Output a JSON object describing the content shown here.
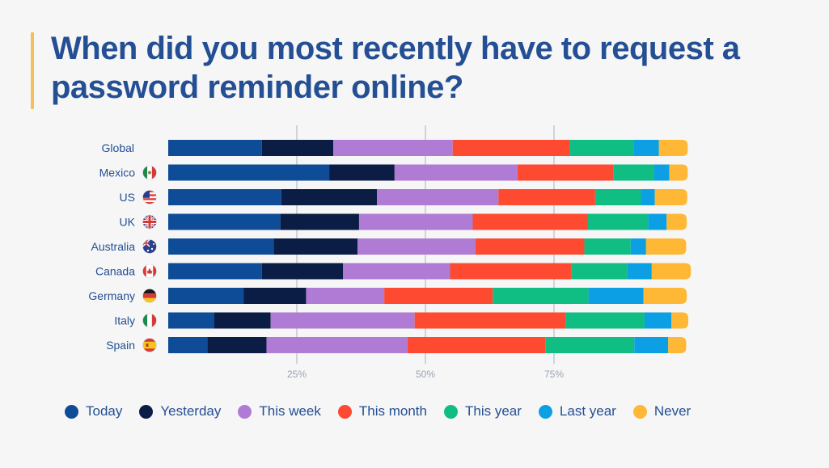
{
  "header": {
    "title": "When did you most recently have to request a password reminder online?"
  },
  "colors": {
    "title": "#244f94",
    "accent": "#f5bf5a",
    "background": "#f6f6f6",
    "grid": "#cfd4dc"
  },
  "chart_data": {
    "type": "bar",
    "orientation": "horizontal",
    "stacked": true,
    "title": "When did you most recently have to request a password reminder online?",
    "categories": [
      "Global",
      "Mexico",
      "US",
      "UK",
      "Australia",
      "Canada",
      "Germany",
      "Italy",
      "Spain"
    ],
    "flags": [
      "",
      "mexico-flag-icon",
      "us-flag-icon",
      "uk-flag-icon",
      "australia-flag-icon",
      "canada-flag-icon",
      "germany-flag-icon",
      "italy-flag-icon",
      "spain-flag-icon"
    ],
    "xlim": [
      0,
      100
    ],
    "xticks": [
      25,
      50,
      75
    ],
    "xtick_labels": [
      "25%",
      "50%",
      "75%"
    ],
    "grid": true,
    "legend_position": "bottom",
    "series": [
      {
        "name": "Today",
        "color": "#0f4c97",
        "values": [
          18.2,
          31.3,
          22.0,
          21.8,
          20.5,
          18.2,
          14.7,
          8.9,
          7.6
        ]
      },
      {
        "name": "Yesterday",
        "color": "#0b1d45",
        "values": [
          13.9,
          12.7,
          18.6,
          15.3,
          16.3,
          15.8,
          12.1,
          11.0,
          11.5
        ]
      },
      {
        "name": "This week",
        "color": "#af7bd4",
        "values": [
          23.2,
          23.9,
          23.6,
          22.1,
          22.9,
          20.8,
          15.2,
          28.0,
          27.4
        ]
      },
      {
        "name": "This month",
        "color": "#fd4a30",
        "values": [
          22.7,
          18.6,
          18.8,
          22.4,
          21.2,
          23.6,
          21.1,
          29.4,
          26.8
        ]
      },
      {
        "name": "This year",
        "color": "#10bd82",
        "values": [
          12.5,
          8.0,
          8.9,
          11.7,
          9.0,
          10.8,
          18.6,
          15.3,
          17.3
        ]
      },
      {
        "name": "Last year",
        "color": "#0d9fe4",
        "values": [
          4.9,
          2.9,
          2.7,
          3.6,
          3.0,
          4.8,
          10.7,
          5.2,
          6.6
        ]
      },
      {
        "name": "Never",
        "color": "#feb836",
        "values": [
          5.6,
          3.6,
          6.3,
          3.9,
          7.8,
          7.6,
          8.4,
          3.3,
          3.5
        ]
      }
    ]
  }
}
